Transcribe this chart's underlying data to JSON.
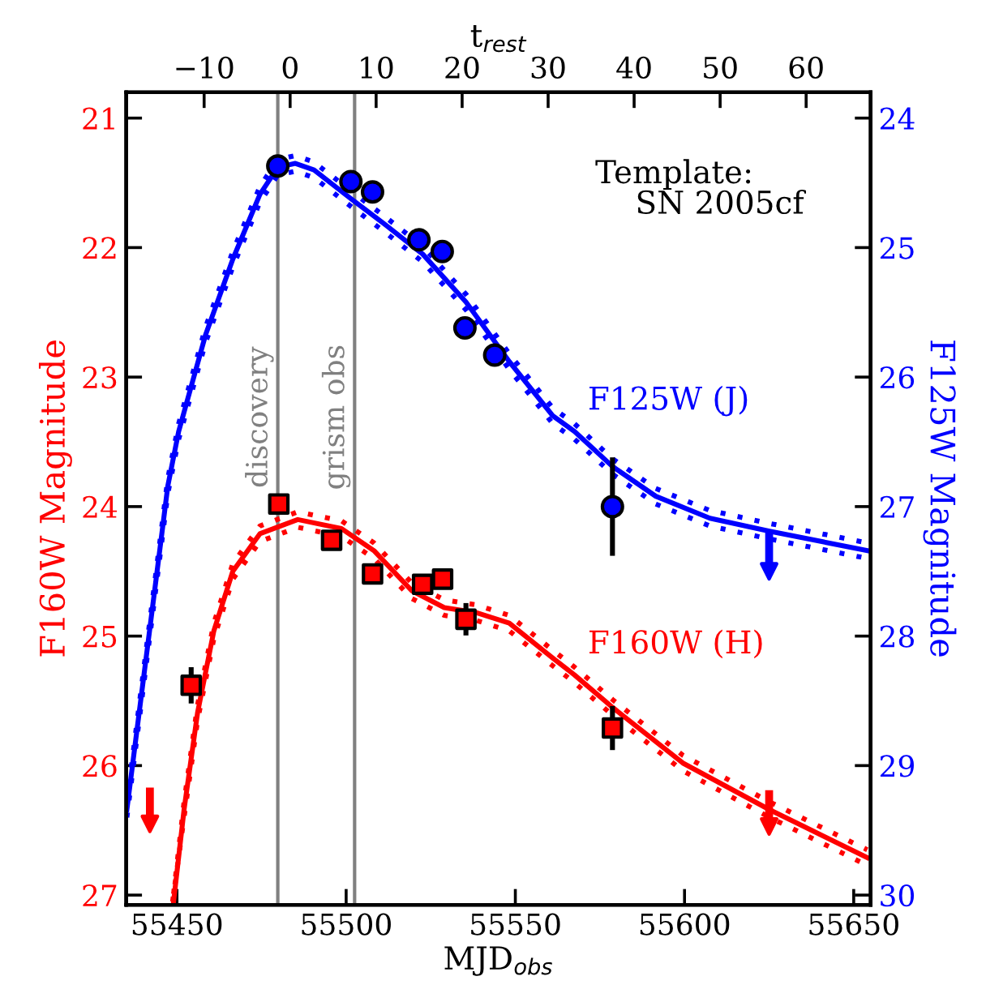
{
  "chart_data": {
    "type": "scatter",
    "xlabel": "MJD$_{obs}$",
    "x2label": "t$_{rest}$",
    "ylabel": "F160W Magnitude",
    "y2label": "F125W Magnitude",
    "xlim": [
      55435,
      55655
    ],
    "xticks": [
      55450,
      55500,
      55550,
      55600,
      55650
    ],
    "x2lim": [
      -19.06,
      67.5
    ],
    "x2ticks": [
      {
        "value": -10,
        "label": "−10"
      },
      0,
      10,
      20,
      30,
      40,
      50,
      60
    ],
    "ylim": [
      27.075,
      20.8
    ],
    "yticks": [
      21,
      22,
      23,
      24,
      25,
      26,
      27
    ],
    "y2lim": [
      30.075,
      23.8
    ],
    "y2ticks": [
      24,
      25,
      26,
      27,
      28,
      29,
      30
    ],
    "grid": false,
    "legend": false,
    "annotations": [
      "Template:\n    SN 2005cf"
    ],
    "ref_lines": [
      {
        "axis": "x",
        "value": 55479.8,
        "label": "discovery",
        "color": "#808080"
      },
      {
        "axis": "x",
        "value": 55502.5,
        "label": "grism obs",
        "color": "#808080"
      }
    ],
    "series": [
      {
        "type": "line",
        "name": "F125W (J)",
        "axis": "y2",
        "color": "#0000ff",
        "marker": "none",
        "line_style": "solid",
        "x": [
          55435.2,
          55444.9,
          55447.3,
          55450.5,
          55458.5,
          55466.5,
          55474.5,
          55479.8,
          55485.0,
          55490.5,
          55501.8,
          55511.4,
          55522.6,
          55535.4,
          55548.2,
          55561.1,
          55567.5,
          55578.7,
          55591.5,
          55607.5,
          55625.1,
          55654
        ],
        "values": [
          29.34,
          27.34,
          26.84,
          26.42,
          25.67,
          25.09,
          24.59,
          24.38,
          24.35,
          24.4,
          24.63,
          24.82,
          25.05,
          25.42,
          25.88,
          26.3,
          26.42,
          26.69,
          26.92,
          27.09,
          27.19,
          27.34
        ]
      },
      {
        "type": "line",
        "axis": "y2",
        "color": "#0000ff",
        "marker": "none",
        "line_style": "dotted",
        "x": [
          55435.2,
          55444.9,
          55447.3,
          55450.5,
          55458.5,
          55466.5,
          55474.5,
          55479.8,
          55485.0,
          55490.5,
          55501.8,
          55511.4,
          55522.6,
          55535.4,
          55548.2,
          55561.1,
          55567.5,
          55578.7,
          55591.5,
          55607.5,
          55625.1,
          55654
        ],
        "values": [
          29.28,
          27.28,
          26.78,
          26.36,
          25.61,
          25.03,
          24.53,
          24.32,
          24.29,
          24.34,
          24.57,
          24.76,
          24.99,
          25.36,
          25.82,
          26.24,
          26.36,
          26.63,
          26.86,
          27.03,
          27.13,
          27.28
        ]
      },
      {
        "type": "line",
        "axis": "y2",
        "color": "#0000ff",
        "marker": "none",
        "line_style": "dotted",
        "x": [
          55435.2,
          55444.9,
          55447.3,
          55450.5,
          55458.5,
          55466.5,
          55474.5,
          55479.8,
          55485.0,
          55490.5,
          55501.8,
          55511.4,
          55522.6,
          55535.4,
          55548.2,
          55561.1,
          55567.5,
          55578.7,
          55591.5,
          55607.5,
          55625.1,
          55654
        ],
        "values": [
          29.4,
          27.4,
          26.9,
          26.48,
          25.73,
          25.15,
          24.65,
          24.44,
          24.41,
          24.46,
          24.69,
          24.88,
          25.11,
          25.48,
          25.94,
          26.36,
          26.48,
          26.75,
          26.98,
          27.15,
          27.25,
          27.4
        ]
      },
      {
        "type": "line",
        "name": "F160W (H)",
        "axis": "y",
        "color": "#ff0000",
        "marker": "none",
        "line_style": "solid",
        "x": [
          55449,
          55452.1,
          55456.1,
          55460.9,
          55466.5,
          55474.5,
          55485.7,
          55498.6,
          55508.2,
          55519.4,
          55529.0,
          55538.6,
          55548.2,
          55561.1,
          55567.5,
          55578.7,
          55599.5,
          55625.1,
          55654
        ],
        "values": [
          27.05,
          26.34,
          25.59,
          24.96,
          24.5,
          24.21,
          24.1,
          24.17,
          24.34,
          24.65,
          24.78,
          24.82,
          24.9,
          25.17,
          25.3,
          25.55,
          25.98,
          26.34,
          26.71
        ]
      },
      {
        "type": "line",
        "axis": "y",
        "color": "#ff0000",
        "marker": "none",
        "line_style": "dotted",
        "x": [
          55449,
          55452.1,
          55456.1,
          55460.9,
          55466.5,
          55474.5,
          55485.7,
          55498.6,
          55508.2,
          55519.4,
          55529.0,
          55538.6,
          55548.2,
          55561.1,
          55567.5,
          55578.7,
          55599.5,
          55625.1,
          55654
        ],
        "values": [
          26.99,
          26.28,
          25.53,
          24.9,
          24.44,
          24.15,
          24.04,
          24.11,
          24.28,
          24.59,
          24.72,
          24.76,
          24.84,
          25.11,
          25.24,
          25.49,
          25.92,
          26.28,
          26.65
        ]
      },
      {
        "type": "line",
        "axis": "y",
        "color": "#ff0000",
        "marker": "none",
        "line_style": "dotted",
        "x": [
          55448.7,
          55452.1,
          55456.1,
          55460.9,
          55466.5,
          55474.5,
          55485.7,
          55498.6,
          55508.2,
          55519.4,
          55529.0,
          55538.6,
          55548.2,
          55561.1,
          55567.5,
          55578.7,
          55599.5,
          55625.1,
          55654
        ],
        "values": [
          27.05,
          26.4,
          25.65,
          25.02,
          24.56,
          24.27,
          24.16,
          24.23,
          24.4,
          24.71,
          24.84,
          24.88,
          24.96,
          25.23,
          25.36,
          25.61,
          26.04,
          26.4,
          26.77
        ]
      },
      {
        "axis": "y2",
        "color": "#0000ff",
        "marker": "circle",
        "x": [
          55479.8,
          55501.4,
          55507.8,
          55521.5,
          55528.4,
          55535.1,
          55543.9,
          55578.7
        ],
        "values": [
          24.37,
          24.49,
          24.57,
          24.94,
          25.03,
          25.62,
          25.83,
          27.0
        ],
        "errors": [
          null,
          null,
          null,
          null,
          null,
          null,
          null,
          0.38
        ]
      },
      {
        "axis": "y",
        "color": "#ff0000",
        "marker": "square",
        "x": [
          55454.2,
          55480.1,
          55495.7,
          55507.8,
          55522.6,
          55528.5,
          55535.4,
          55578.7
        ],
        "values": [
          25.38,
          23.98,
          24.26,
          24.52,
          24.6,
          24.56,
          24.87,
          25.71
        ],
        "errors": [
          0.14,
          null,
          null,
          null,
          null,
          0.06,
          0.125,
          0.17
        ]
      },
      {
        "axis": "y2",
        "color": "#0000ff",
        "marker": "triangle",
        "x": [
          55625
        ],
        "values": [
          27.5
        ],
        "errors": [
          [
            27.2,
            27.5
          ]
        ]
      },
      {
        "axis": "y",
        "color": "#ff0000",
        "marker": "triangle",
        "x": [
          55442,
          55625
        ],
        "values": [
          26.45,
          26.47
        ],
        "errors": [
          [
            26.17,
            26.45
          ],
          [
            26.19,
            26.47
          ]
        ]
      }
    ]
  }
}
